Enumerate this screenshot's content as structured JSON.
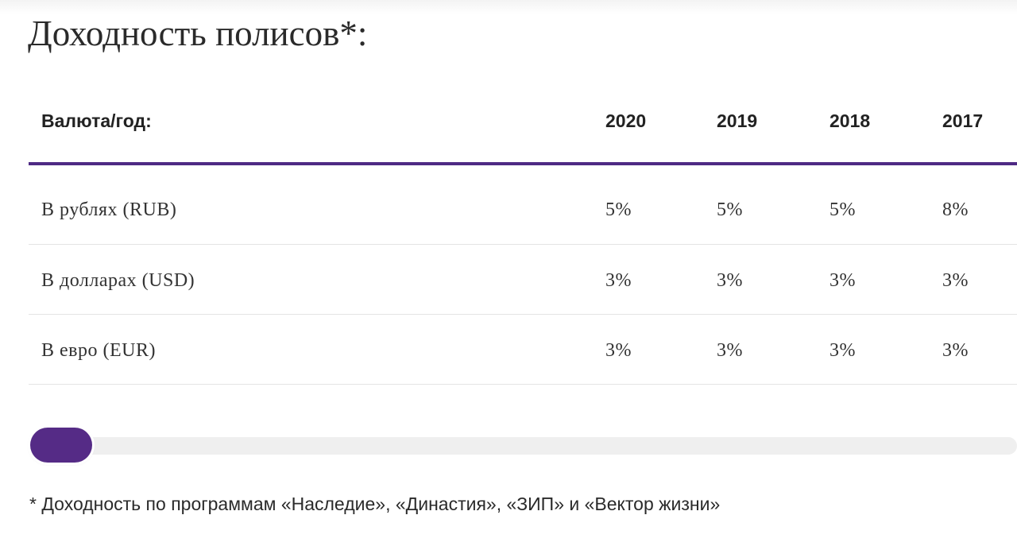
{
  "title": "Доходность полисов*:",
  "table": {
    "header": {
      "label": "Валюта/год:",
      "years": [
        "2020",
        "2019",
        "2018",
        "2017"
      ]
    },
    "rows": [
      {
        "label": "В рублях (RUB)",
        "values": [
          "5%",
          "5%",
          "5%",
          "8%"
        ]
      },
      {
        "label": "В долларах (USD)",
        "values": [
          "3%",
          "3%",
          "3%",
          "3%"
        ]
      },
      {
        "label": "В евро (EUR)",
        "values": [
          "3%",
          "3%",
          "3%",
          "3%"
        ]
      }
    ]
  },
  "scrollbar": {
    "thumb_color": "#552b86",
    "position": 0
  },
  "footnote": "* Доходность по программам «Наследие», «Династия», «ЗИП» и «Вектор жизни»",
  "colors": {
    "accent": "#4e2a84",
    "divider": "#e4e4e4",
    "track": "#efefef"
  }
}
